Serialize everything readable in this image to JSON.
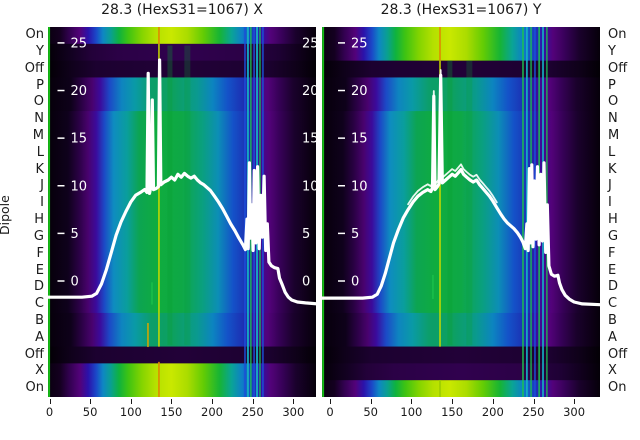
{
  "figure": {
    "background": "#ffffff",
    "ylabel": "Dipole"
  },
  "dipole_labels": [
    "On",
    "Y",
    "Off",
    "P",
    "O",
    "N",
    "M",
    "L",
    "K",
    "J",
    "I",
    "H",
    "G",
    "F",
    "E",
    "D",
    "C",
    "B",
    "A",
    "Off",
    "X",
    "On"
  ],
  "x_tick_labels": [
    "0",
    "50",
    "100",
    "150",
    "200",
    "250",
    "300"
  ],
  "y_tick_labels": [
    "25",
    "20",
    "15",
    "10",
    "5",
    "0"
  ],
  "colors": {
    "curve": "#ffffff",
    "inner_tick_text": "#ffffff",
    "axis_text": "#1a1a1a"
  },
  "gradients": {
    "bright": [
      [
        0,
        "#0a0010"
      ],
      [
        0.045,
        "#140020"
      ],
      [
        0.08,
        "#320150"
      ],
      [
        0.12,
        "#53027a"
      ],
      [
        0.15,
        "#2b12aa"
      ],
      [
        0.18,
        "#1b49c8"
      ],
      [
        0.205,
        "#0e86c4"
      ],
      [
        0.235,
        "#0aa090"
      ],
      [
        0.265,
        "#0fb23e"
      ],
      [
        0.3,
        "#3fc312"
      ],
      [
        0.35,
        "#84d400"
      ],
      [
        0.4,
        "#b4e000"
      ],
      [
        0.46,
        "#c9e800"
      ],
      [
        0.52,
        "#abdc00"
      ],
      [
        0.58,
        "#63cc04"
      ],
      [
        0.64,
        "#17b434"
      ],
      [
        0.685,
        "#0aa496"
      ],
      [
        0.725,
        "#0e7ec8"
      ],
      [
        0.765,
        "#1b3abe"
      ],
      [
        0.795,
        "#3012a8"
      ],
      [
        0.83,
        "#53027a"
      ],
      [
        0.875,
        "#370158"
      ],
      [
        0.925,
        "#1a012c"
      ],
      [
        1,
        "#06000a"
      ]
    ],
    "letter_mid": [
      [
        0,
        "#06000a"
      ],
      [
        0.075,
        "#0f011c"
      ],
      [
        0.115,
        "#2a0144"
      ],
      [
        0.15,
        "#49026e"
      ],
      [
        0.18,
        "#3b0b9c"
      ],
      [
        0.21,
        "#1c49c6"
      ],
      [
        0.245,
        "#0e8cc0"
      ],
      [
        0.295,
        "#0a9e9c"
      ],
      [
        0.34,
        "#0ca452"
      ],
      [
        0.41,
        "#0fac3e"
      ],
      [
        0.5,
        "#0ea846"
      ],
      [
        0.575,
        "#0aa07e"
      ],
      [
        0.635,
        "#0c8eb6"
      ],
      [
        0.69,
        "#1452c8"
      ],
      [
        0.745,
        "#1c2fb2"
      ],
      [
        0.785,
        "#3b0b9c"
      ],
      [
        0.825,
        "#53027a"
      ],
      [
        0.865,
        "#370158"
      ],
      [
        0.92,
        "#1a012c"
      ],
      [
        1,
        "#06000a"
      ]
    ],
    "letter_outer": [
      [
        0,
        "#06000a"
      ],
      [
        0.085,
        "#0e011a"
      ],
      [
        0.125,
        "#2a0144"
      ],
      [
        0.165,
        "#49026e"
      ],
      [
        0.195,
        "#3b0b9c"
      ],
      [
        0.23,
        "#1c49c6"
      ],
      [
        0.275,
        "#0e84c0"
      ],
      [
        0.325,
        "#0a9aa6"
      ],
      [
        0.385,
        "#0c9e6a"
      ],
      [
        0.47,
        "#0da060"
      ],
      [
        0.555,
        "#0a9a8e"
      ],
      [
        0.615,
        "#0c84c0"
      ],
      [
        0.67,
        "#1452c8"
      ],
      [
        0.73,
        "#1c2fb2"
      ],
      [
        0.775,
        "#3b0b9c"
      ],
      [
        0.82,
        "#53027a"
      ],
      [
        0.86,
        "#370158"
      ],
      [
        0.915,
        "#1a012c"
      ],
      [
        1,
        "#06000a"
      ]
    ],
    "dark": [
      [
        0,
        "#030005"
      ],
      [
        0.09,
        "#10011c"
      ],
      [
        0.18,
        "#1c0130"
      ],
      [
        0.5,
        "#220138"
      ],
      [
        0.82,
        "#1c0130"
      ],
      [
        0.93,
        "#0e0118"
      ],
      [
        1,
        "#030005"
      ]
    ],
    "dark_xy": [
      [
        0,
        "#040007"
      ],
      [
        0.09,
        "#130122"
      ],
      [
        0.16,
        "#230139"
      ],
      [
        0.26,
        "#2b0146"
      ],
      [
        0.5,
        "#30014e"
      ],
      [
        0.74,
        "#2b0146"
      ],
      [
        0.86,
        "#1e0134"
      ],
      [
        1,
        "#040007"
      ]
    ]
  },
  "chart_data": [
    {
      "type": "heatmap",
      "title": "28.3 (HexS31=1067) X",
      "x_ticks": [
        0,
        50,
        100,
        150,
        200,
        250,
        300
      ],
      "y_ticks": [
        25,
        20,
        15,
        10,
        5,
        0
      ],
      "x_range_est": [
        0,
        328
      ],
      "right_inner_labels": true,
      "double_peak": false,
      "row_types": [
        "bright",
        "dark_xy",
        "dark",
        "letter_outer",
        "letter_outer",
        "letter_mid",
        "letter_mid",
        "letter_mid",
        "letter_mid",
        "letter_mid",
        "letter_mid",
        "letter_mid",
        "letter_mid",
        "letter_mid",
        "letter_mid",
        "letter_mid",
        "letter_mid",
        "letter_outer",
        "letter_outer",
        "dark",
        "bright",
        "bright"
      ],
      "artifact_lines": [
        {
          "f": 0.004,
          "w": 2,
          "c": "#17c417",
          "y0": 0,
          "y1": 1,
          "o": 0.95
        },
        {
          "f": 0.414,
          "w": 1.6,
          "c": "#e08800",
          "y0": 0,
          "y1": 0.046,
          "o": 1
        },
        {
          "f": 0.414,
          "w": 1.6,
          "c": "#c6d800",
          "y0": 0.046,
          "y1": 0.864,
          "o": 0.95
        },
        {
          "f": 0.414,
          "w": 1.6,
          "c": "#e08800",
          "y0": 0.905,
          "y1": 1,
          "o": 1
        },
        {
          "f": 0.455,
          "w": 5,
          "c": "#0b9e2e",
          "y0": 0.05,
          "y1": 0.86,
          "o": 0.3
        },
        {
          "f": 0.52,
          "w": 6,
          "c": "#0b9e2e",
          "y0": 0.05,
          "y1": 0.86,
          "o": 0.25
        },
        {
          "f": 0.735,
          "w": 1.6,
          "c": "#1c50d8",
          "y0": 0,
          "y1": 1,
          "o": 0.9
        },
        {
          "f": 0.746,
          "w": 2,
          "c": "#14b4c4",
          "y0": 0,
          "y1": 1,
          "o": 0.9
        },
        {
          "f": 0.757,
          "w": 1.4,
          "c": "#1cc44c",
          "y0": 0,
          "y1": 1,
          "o": 0.9
        },
        {
          "f": 0.769,
          "w": 1.6,
          "c": "#1c50d8",
          "y0": 0,
          "y1": 1,
          "o": 0.9
        },
        {
          "f": 0.78,
          "w": 2,
          "c": "#14b4c4",
          "y0": 0,
          "y1": 1,
          "o": 0.9
        },
        {
          "f": 0.791,
          "w": 1.4,
          "c": "#1cc44c",
          "y0": 0,
          "y1": 1,
          "o": 0.9
        },
        {
          "f": 0.802,
          "w": 1.6,
          "c": "#1c50d8",
          "y0": 0,
          "y1": 1,
          "o": 0.9
        },
        {
          "f": 0.373,
          "w": 1.6,
          "c": "#d8a400",
          "y0": 0.8,
          "y1": 0.865,
          "o": 0.95
        },
        {
          "f": 0.388,
          "w": 1.4,
          "c": "#1cc44c",
          "y0": 0.69,
          "y1": 0.75,
          "o": 0.9
        }
      ],
      "curve": [
        [
          -2,
          -1.7
        ],
        [
          40,
          -1.7
        ],
        [
          52,
          -1.6
        ],
        [
          58,
          -1.3
        ],
        [
          64,
          -0.3
        ],
        [
          70,
          1.2
        ],
        [
          76,
          3.0
        ],
        [
          82,
          4.8
        ],
        [
          88,
          6.2
        ],
        [
          94,
          7.3
        ],
        [
          100,
          8.3
        ],
        [
          106,
          9.0
        ],
        [
          112,
          9.3
        ],
        [
          117,
          9.6
        ],
        [
          120,
          9.3
        ],
        [
          121.5,
          21.8
        ],
        [
          123,
          9.2
        ],
        [
          125,
          10.0
        ],
        [
          126.5,
          19.0
        ],
        [
          128,
          9.6
        ],
        [
          131,
          9.7
        ],
        [
          134,
          9.9
        ],
        [
          135.5,
          23.2
        ],
        [
          137,
          10.1
        ],
        [
          141,
          10.4
        ],
        [
          146,
          10.6
        ],
        [
          150,
          10.9
        ],
        [
          154,
          10.6
        ],
        [
          158,
          11.2
        ],
        [
          162,
          10.9
        ],
        [
          166,
          11.3
        ],
        [
          170,
          11.0
        ],
        [
          174,
          10.8
        ],
        [
          178,
          11.0
        ],
        [
          182,
          10.6
        ],
        [
          186,
          10.3
        ],
        [
          190,
          10.1
        ],
        [
          194,
          9.8
        ],
        [
          198,
          9.5
        ],
        [
          203,
          8.9
        ],
        [
          208,
          8.3
        ],
        [
          213,
          7.6
        ],
        [
          218,
          6.8
        ],
        [
          223,
          6.0
        ],
        [
          228,
          5.3
        ],
        [
          233,
          4.5
        ],
        [
          238,
          3.8
        ],
        [
          241,
          3.3
        ],
        [
          243,
          6.5
        ],
        [
          244.5,
          3.4
        ],
        [
          246,
          12.4
        ],
        [
          247.5,
          4.5
        ],
        [
          249,
          8.0
        ],
        [
          250.5,
          3.2
        ],
        [
          252,
          11.6
        ],
        [
          254,
          4.0
        ],
        [
          256,
          12.0
        ],
        [
          258,
          3.4
        ],
        [
          260,
          9.0
        ],
        [
          262,
          4.6
        ],
        [
          264,
          11.0
        ],
        [
          266,
          3.2
        ],
        [
          268,
          6.0
        ],
        [
          270,
          2.0
        ],
        [
          273,
          1.6
        ],
        [
          277,
          1.4
        ],
        [
          281,
          1.3
        ],
        [
          283,
          0.3
        ],
        [
          286,
          -0.3
        ],
        [
          290,
          -1.2
        ],
        [
          294,
          -1.7
        ],
        [
          298,
          -2.0
        ],
        [
          305,
          -2.2
        ],
        [
          315,
          -2.3
        ],
        [
          330,
          -2.4
        ]
      ]
    },
    {
      "type": "heatmap",
      "title": "28.3 (HexS31=1067) Y",
      "x_ticks": [
        0,
        50,
        100,
        150,
        200,
        250,
        300
      ],
      "y_ticks": [
        25,
        20,
        15,
        10,
        5,
        0
      ],
      "x_range_est": [
        0,
        335
      ],
      "right_inner_labels": false,
      "double_peak": true,
      "row_types": [
        "bright",
        "bright",
        "dark",
        "letter_outer",
        "letter_outer",
        "letter_mid",
        "letter_mid",
        "letter_mid",
        "letter_mid",
        "letter_mid",
        "letter_mid",
        "letter_mid",
        "letter_mid",
        "letter_mid",
        "letter_mid",
        "letter_mid",
        "letter_mid",
        "letter_outer",
        "letter_outer",
        "dark",
        "dark_xy",
        "bright"
      ],
      "artifact_lines": [
        {
          "f": 0.004,
          "w": 2,
          "c": "#17c417",
          "y0": 0,
          "y1": 1,
          "o": 0.95
        },
        {
          "f": 0.4245,
          "w": 1.6,
          "c": "#e08800",
          "y0": 0,
          "y1": 0.091,
          "o": 1
        },
        {
          "f": 0.4245,
          "w": 1.6,
          "c": "#c6d800",
          "y0": 0.091,
          "y1": 0.864,
          "o": 0.95
        },
        {
          "f": 0.4245,
          "w": 1.6,
          "c": "#9ccc00",
          "y0": 0.954,
          "y1": 1,
          "o": 1
        },
        {
          "f": 0.46,
          "w": 5,
          "c": "#0b9e2e",
          "y0": 0.09,
          "y1": 0.86,
          "o": 0.3
        },
        {
          "f": 0.53,
          "w": 6,
          "c": "#0b9e2e",
          "y0": 0.09,
          "y1": 0.86,
          "o": 0.25
        },
        {
          "f": 0.723,
          "w": 1.6,
          "c": "#1cc44c",
          "y0": 0,
          "y1": 1,
          "o": 0.9
        },
        {
          "f": 0.737,
          "w": 1.8,
          "c": "#14b4c4",
          "y0": 0,
          "y1": 1,
          "o": 0.9
        },
        {
          "f": 0.752,
          "w": 1.4,
          "c": "#1cc44c",
          "y0": 0,
          "y1": 1,
          "o": 0.9
        },
        {
          "f": 0.766,
          "w": 1.6,
          "c": "#1c50d8",
          "y0": 0,
          "y1": 1,
          "o": 0.9
        },
        {
          "f": 0.781,
          "w": 1.6,
          "c": "#1cc44c",
          "y0": 0,
          "y1": 1,
          "o": 0.9
        },
        {
          "f": 0.795,
          "w": 1.8,
          "c": "#14b4c4",
          "y0": 0,
          "y1": 1,
          "o": 0.9
        },
        {
          "f": 0.809,
          "w": 1.4,
          "c": "#1cc44c",
          "y0": 0,
          "y1": 1,
          "o": 0.9
        },
        {
          "f": 0.399,
          "w": 1.4,
          "c": "#1cc44c",
          "y0": 0.67,
          "y1": 0.735,
          "o": 0.9
        }
      ],
      "curve": [
        [
          -10,
          -1.8
        ],
        [
          40,
          -1.8
        ],
        [
          52,
          -1.7
        ],
        [
          58,
          -1.4
        ],
        [
          63,
          -0.5
        ],
        [
          68,
          0.8
        ],
        [
          73,
          2.4
        ],
        [
          78,
          4.0
        ],
        [
          84,
          5.4
        ],
        [
          90,
          6.6
        ],
        [
          96,
          7.5
        ],
        [
          102,
          8.3
        ],
        [
          108,
          8.9
        ],
        [
          114,
          9.3
        ],
        [
          120,
          9.6
        ],
        [
          124,
          9.4
        ],
        [
          126,
          9.8
        ],
        [
          127.5,
          19.4
        ],
        [
          129,
          9.6
        ],
        [
          132,
          9.9
        ],
        [
          134,
          10.2
        ],
        [
          136,
          21.6
        ],
        [
          138,
          10.3
        ],
        [
          142,
          10.6
        ],
        [
          146,
          10.9
        ],
        [
          150,
          11.2
        ],
        [
          154,
          11.0
        ],
        [
          158,
          11.4
        ],
        [
          161,
          11.7
        ],
        [
          164,
          11.2
        ],
        [
          168,
          10.9
        ],
        [
          172,
          10.6
        ],
        [
          176,
          10.4
        ],
        [
          180,
          10.6
        ],
        [
          184,
          10.1
        ],
        [
          188,
          9.7
        ],
        [
          192,
          9.3
        ],
        [
          196,
          8.9
        ],
        [
          200,
          8.4
        ],
        [
          205,
          7.7
        ],
        [
          210,
          7.0
        ],
        [
          214,
          6.5
        ],
        [
          218,
          6.1
        ],
        [
          222,
          5.8
        ],
        [
          226,
          5.5
        ],
        [
          230,
          5.1
        ],
        [
          234,
          4.6
        ],
        [
          237,
          4.1
        ],
        [
          240,
          3.4
        ],
        [
          242,
          6.0
        ],
        [
          243.5,
          3.2
        ],
        [
          245,
          11.8
        ],
        [
          246.5,
          4.0
        ],
        [
          248,
          12.2
        ],
        [
          249.5,
          3.6
        ],
        [
          251,
          10.5
        ],
        [
          253,
          4.4
        ],
        [
          255,
          12.0
        ],
        [
          257,
          3.8
        ],
        [
          259,
          11.2
        ],
        [
          261,
          4.2
        ],
        [
          263,
          12.4
        ],
        [
          265,
          3.0
        ],
        [
          267,
          8.0
        ],
        [
          269,
          1.6
        ],
        [
          272,
          0.7
        ],
        [
          276,
          0.5
        ],
        [
          280,
          0.6
        ],
        [
          282,
          -0.2
        ],
        [
          285,
          -0.9
        ],
        [
          289,
          -1.5
        ],
        [
          294,
          -1.9
        ],
        [
          300,
          -2.2
        ],
        [
          310,
          -2.4
        ],
        [
          335,
          -2.5
        ]
      ]
    }
  ]
}
